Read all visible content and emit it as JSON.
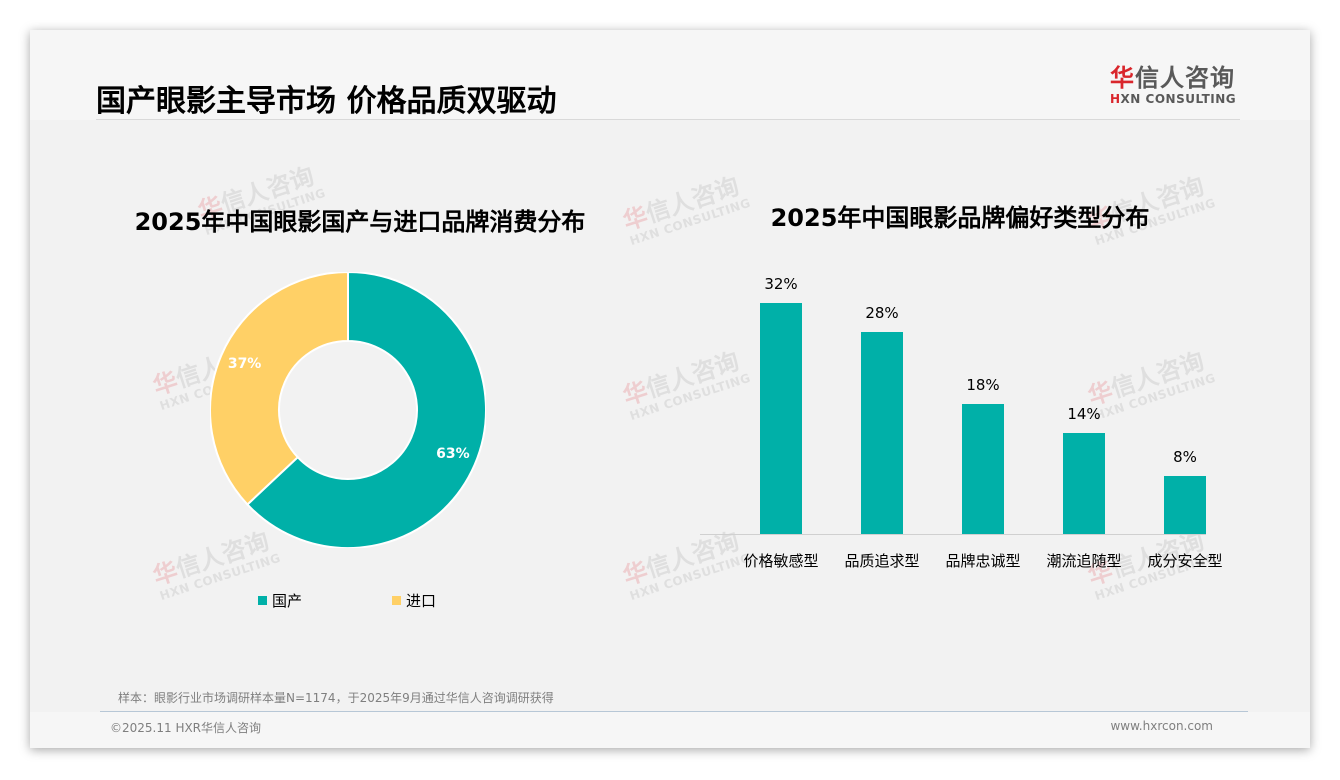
{
  "header": {
    "title": "国产眼影主导市场 价格品质双驱动",
    "logo": {
      "cn_red": "华",
      "cn_rest": "信人咨询",
      "en_red": "H",
      "en_rest": "XN CONSULTING"
    }
  },
  "watermark": {
    "cn_red": "华",
    "cn_rest": "信人咨询",
    "en": "HXN CONSULTING"
  },
  "colors": {
    "teal": "#00b0a8",
    "yellow": "#ffd066",
    "background": "#f2f2f2"
  },
  "chart_data": [
    {
      "type": "pie",
      "donut": true,
      "title": "2025年中国眼影国产与进口品牌消费分布",
      "categories": [
        "国产",
        "进口"
      ],
      "values": [
        63,
        37
      ],
      "labels": [
        "63%",
        "37%"
      ],
      "colors": [
        "#00b0a8",
        "#ffd066"
      ],
      "legend_position": "bottom"
    },
    {
      "type": "bar",
      "title": "2025年中国眼影品牌偏好类型分布",
      "categories": [
        "价格敏感型",
        "品质追求型",
        "品牌忠诚型",
        "潮流追随型",
        "成分安全型"
      ],
      "values": [
        32,
        28,
        18,
        14,
        8
      ],
      "labels": [
        "32%",
        "28%",
        "18%",
        "14%",
        "8%"
      ],
      "xlabel": "",
      "ylabel": "",
      "ylim": [
        0,
        35
      ],
      "grid": false,
      "color": "#00b0a8"
    }
  ],
  "footer": {
    "note": "样本：眼影行业市场调研样本量N=1174，于2025年9月通过华信人咨询调研获得",
    "copyright": "©2025.11 HXR华信人咨询",
    "website": "www.hxrcon.com"
  }
}
